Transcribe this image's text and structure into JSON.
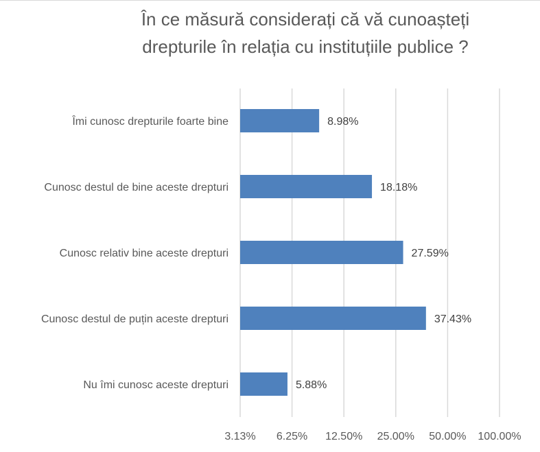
{
  "chart_data": {
    "type": "bar",
    "orientation": "horizontal",
    "title": [
      "În ce măsură considerați că vă cunoașteți",
      "drepturile în relația cu instituțiile publice ?"
    ],
    "categories": [
      "Îmi cunosc drepturile foarte bine",
      "Cunosc destul de bine aceste drepturi",
      "Cunosc relativ bine aceste drepturi",
      "Cunosc destul de puțin aceste drepturi",
      "Nu îmi cunosc aceste drepturi"
    ],
    "values": [
      8.98,
      18.18,
      27.59,
      37.43,
      5.88
    ],
    "data_labels": [
      "8.98%",
      "18.18%",
      "27.59%",
      "37.43%",
      "5.88%"
    ],
    "x_scale": "log2",
    "xlim": [
      3.125,
      100
    ],
    "x_ticks": [
      3.125,
      6.25,
      12.5,
      25,
      50,
      100
    ],
    "x_tick_labels": [
      "3.13%",
      "6.25%",
      "12.50%",
      "25.00%",
      "50.00%",
      "100.00%"
    ],
    "grid": true,
    "bar_color": "#4f81bd",
    "xlabel": "",
    "ylabel": ""
  }
}
